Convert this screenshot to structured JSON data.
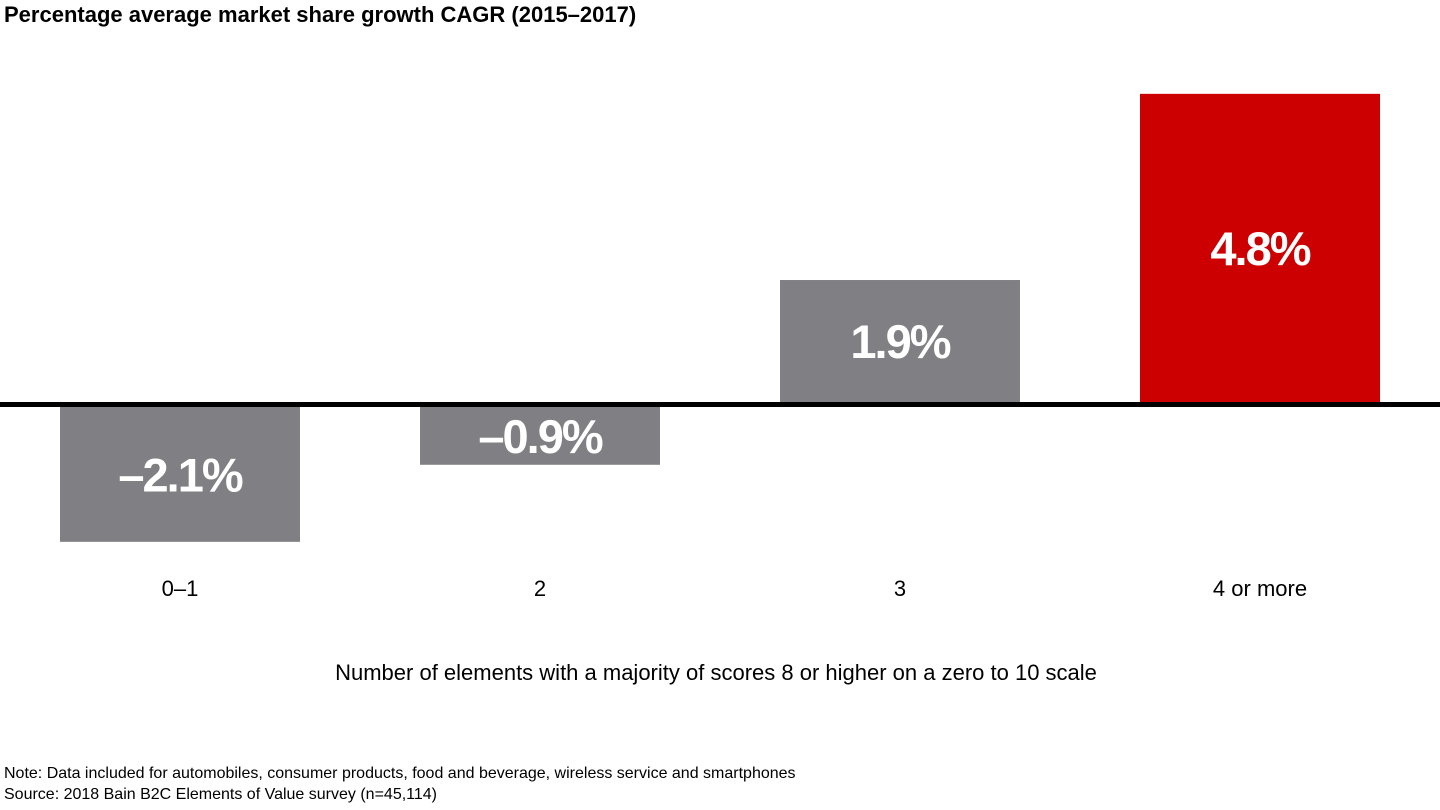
{
  "chart_data": {
    "type": "bar",
    "title": "Percentage average market share growth CAGR (2015–2017)",
    "xlabel": "Number of elements with a majority of scores 8 or higher on a zero to 10 scale",
    "ylabel": "",
    "categories": [
      "0–1",
      "2",
      "3",
      "4 or more"
    ],
    "values": [
      -2.1,
      -0.9,
      1.9,
      4.8
    ],
    "data_labels": [
      "–2.1%",
      "–0.9%",
      "1.9%",
      "4.8%"
    ],
    "colors": [
      "#808084",
      "#808084",
      "#808084",
      "#cc0000"
    ],
    "ylim": [
      -2.1,
      4.8
    ],
    "grid": false,
    "baseline_color": "#000000"
  },
  "footer": {
    "note": "Note: Data included for automobiles, consumer products, food and beverage, wireless service and smartphones",
    "source": "Source: 2018 Bain B2C Elements of Value survey (n=45,114)"
  }
}
